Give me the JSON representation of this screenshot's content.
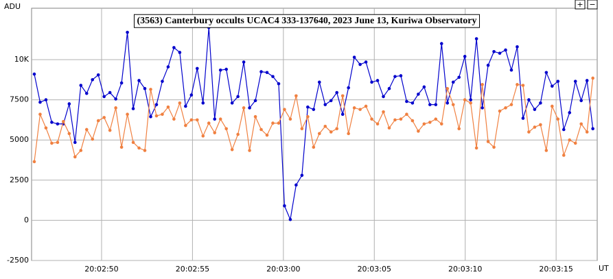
{
  "chart_data": {
    "type": "line",
    "title": "(3563) Canterbury occults UCAC4 333-137640, 2023 June 13, Kuriwa Observatory",
    "y_label": "ADU",
    "x_label": "UT",
    "controls": [
      "+",
      "−"
    ],
    "x": [
      46.3,
      46.62,
      46.94,
      47.26,
      47.58,
      47.9,
      48.22,
      48.54,
      48.86,
      49.18,
      49.5,
      49.82,
      50.14,
      50.46,
      50.78,
      51.1,
      51.42,
      51.74,
      52.06,
      52.38,
      52.7,
      53.02,
      53.34,
      53.66,
      53.98,
      54.3,
      54.62,
      54.94,
      55.26,
      55.58,
      55.9,
      56.22,
      56.54,
      56.86,
      57.18,
      57.5,
      57.82,
      58.14,
      58.46,
      58.78,
      59.1,
      59.42,
      59.74,
      60.06,
      60.38,
      60.7,
      61.02,
      61.34,
      61.66,
      61.98,
      62.3,
      62.62,
      62.94,
      63.26,
      63.58,
      63.9,
      64.22,
      64.54,
      64.86,
      65.18,
      65.5,
      65.82,
      66.14,
      66.46,
      66.78,
      67.1,
      67.42,
      67.74,
      68.06,
      68.38,
      68.7,
      69.02,
      69.34,
      69.66,
      69.98,
      70.3,
      70.62,
      70.94,
      71.26,
      71.58,
      71.9,
      72.22,
      72.54,
      72.86,
      73.18,
      73.5,
      73.82,
      74.14,
      74.46,
      74.78,
      75.1,
      75.42,
      75.74,
      76.06,
      76.38,
      76.7,
      77.02
    ],
    "series": [
      {
        "color": "#0000cc",
        "values": [
          9100,
          7350,
          7500,
          6100,
          6000,
          6000,
          7250,
          4850,
          8400,
          7900,
          8750,
          9050,
          7700,
          7950,
          7550,
          8550,
          11700,
          6950,
          8700,
          8200,
          6450,
          7200,
          8650,
          9550,
          10750,
          10450,
          7100,
          7800,
          9450,
          7300,
          12000,
          6300,
          9350,
          9400,
          7300,
          7700,
          9850,
          7000,
          7450,
          9250,
          9200,
          8950,
          8500,
          900,
          50,
          2200,
          2800,
          7050,
          6900,
          8600,
          7200,
          7450,
          7950,
          6600,
          8250,
          10150,
          9700,
          9850,
          8600,
          8700,
          7700,
          8200,
          8950,
          9000,
          7400,
          7300,
          7850,
          8300,
          7200,
          7200,
          11000,
          7300,
          8600,
          8900,
          10200,
          7500,
          11300,
          7000,
          9650,
          10500,
          10400,
          10600,
          9350,
          10800,
          6350,
          7500,
          6900,
          7300,
          9200,
          8350,
          8650,
          5650,
          6700,
          8650,
          7450,
          8700,
          5700
        ]
      },
      {
        "color": "#f08040",
        "values": [
          3650,
          6600,
          5750,
          4800,
          4850,
          6150,
          5400,
          3950,
          4350,
          5650,
          5050,
          6200,
          6400,
          5600,
          7000,
          4550,
          6600,
          4850,
          4500,
          4350,
          8150,
          6500,
          6600,
          7050,
          6300,
          7300,
          5900,
          6250,
          6250,
          5250,
          6050,
          5450,
          6300,
          5700,
          4400,
          5350,
          7000,
          4350,
          6450,
          5650,
          5300,
          6050,
          6050,
          6900,
          6300,
          7750,
          5700,
          6450,
          4550,
          5400,
          5850,
          5500,
          5700,
          7750,
          5400,
          7000,
          6900,
          7100,
          6300,
          6000,
          6750,
          5750,
          6250,
          6300,
          6600,
          6200,
          5550,
          6000,
          6100,
          6300,
          6000,
          8200,
          7200,
          5700,
          7500,
          7300,
          4500,
          8450,
          4900,
          4550,
          6800,
          7000,
          7200,
          8450,
          8400,
          5500,
          5800,
          5950,
          4350,
          7100,
          6300,
          4050,
          5000,
          4800,
          6000,
          5500,
          8850
        ]
      }
    ],
    "xlim": [
      46.15,
      77.26
    ],
    "xticks": [
      {
        "value": 50,
        "label": "20:02:50"
      },
      {
        "value": 55,
        "label": "20:02:55"
      },
      {
        "value": 60,
        "label": "20:03:00"
      },
      {
        "value": 65,
        "label": "20:03:05"
      },
      {
        "value": 70,
        "label": "20:03:10"
      },
      {
        "value": 75,
        "label": "20:03:15"
      }
    ],
    "ylim": [
      -2500,
      13200
    ],
    "yticks": [
      -2500,
      0,
      2500,
      5000,
      7500,
      {
        "value": 10000,
        "label": "10K"
      }
    ],
    "grid": true
  }
}
